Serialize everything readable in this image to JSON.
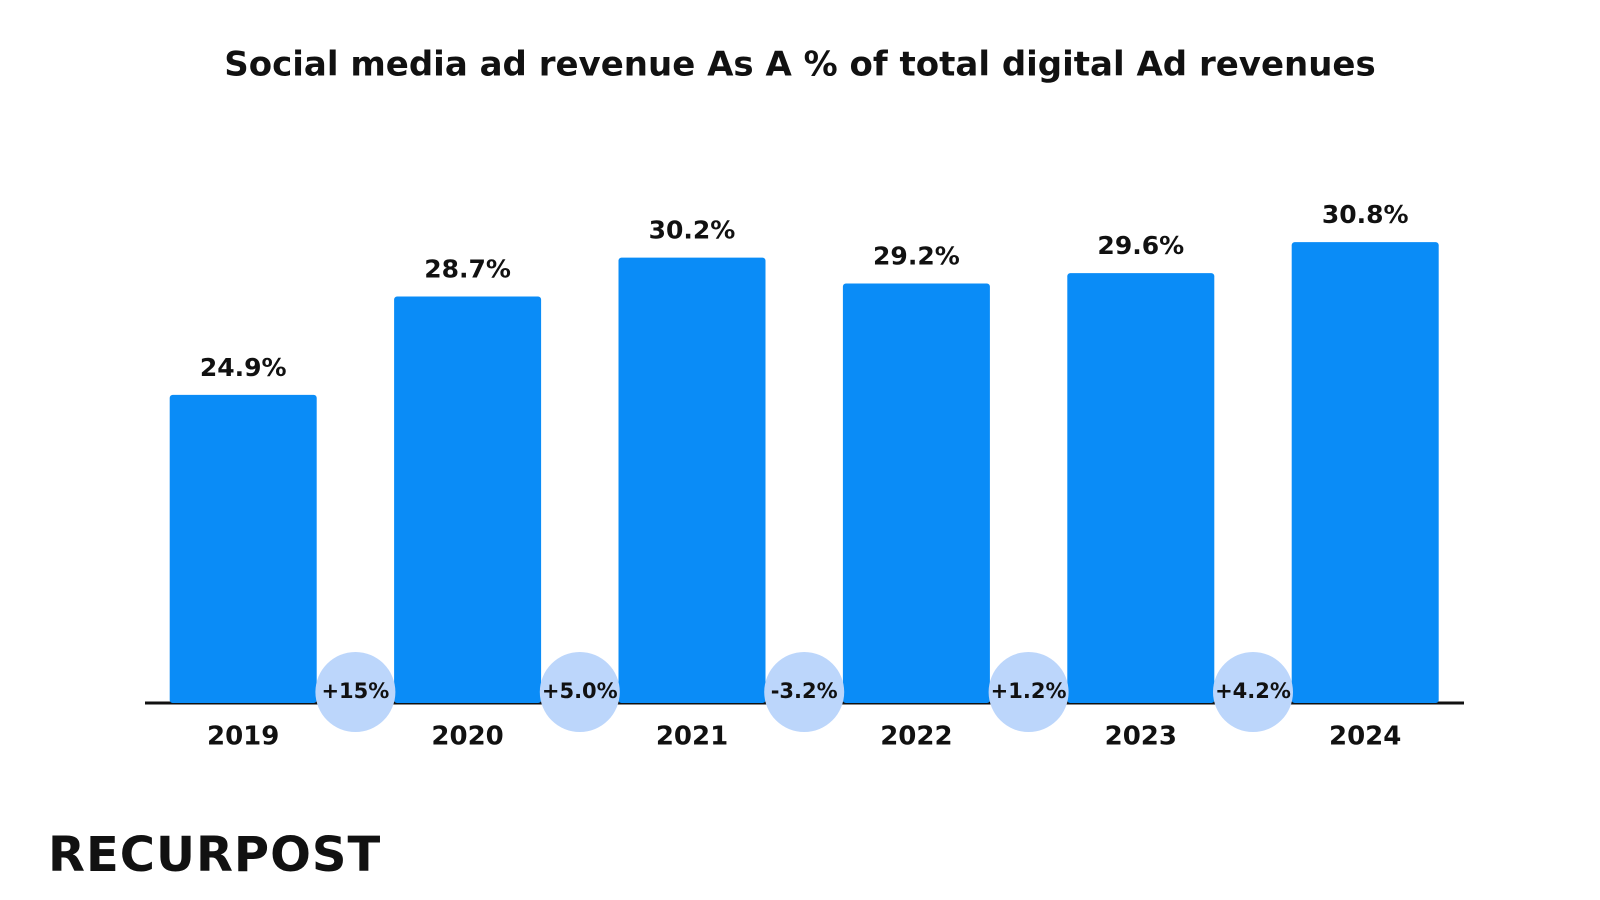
{
  "chart_data": {
    "type": "bar",
    "title": "Social media ad revenue As A % of total digital Ad revenues",
    "categories": [
      "2019",
      "2020",
      "2021",
      "2022",
      "2023",
      "2024"
    ],
    "values": [
      24.9,
      28.7,
      30.2,
      29.2,
      29.6,
      30.8
    ],
    "value_labels": [
      "24.9%",
      "28.7%",
      "30.2%",
      "29.2%",
      "29.6%",
      "30.8%"
    ],
    "color": "#0a8cf7",
    "ylim": [
      13,
      32
    ],
    "annotations": [
      "+15%",
      "+5.0%",
      "-3.2%",
      "+1.2%",
      "+4.2%"
    ]
  },
  "logo": "RECURPOST"
}
